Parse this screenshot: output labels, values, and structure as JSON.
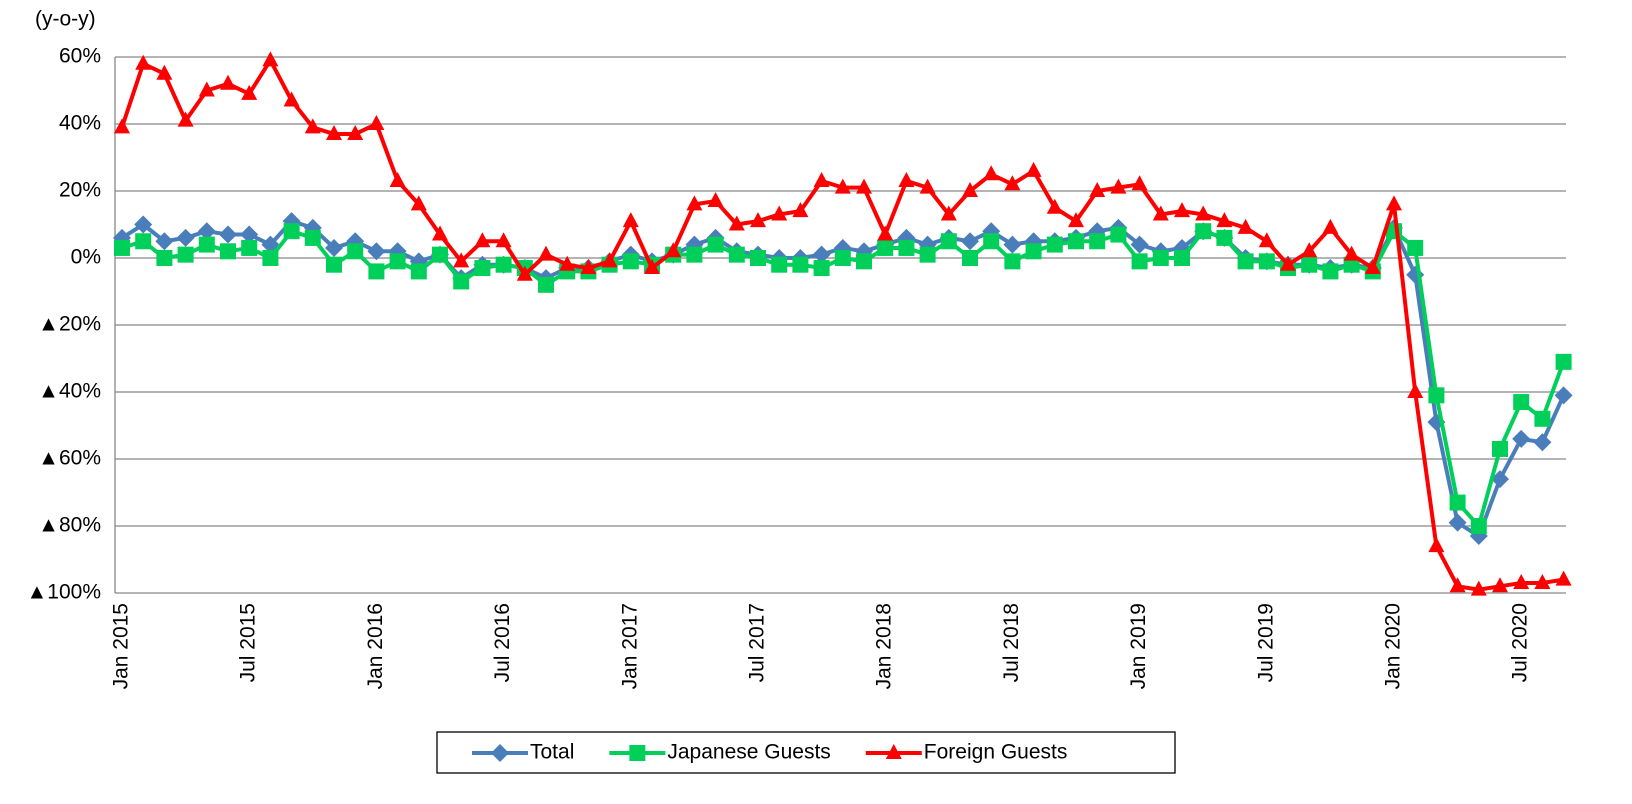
{
  "chart_data": {
    "type": "line",
    "y_axis_label": "(y-o-y)",
    "categories": [
      "Jan 2015",
      null,
      null,
      null,
      null,
      null,
      "Jul 2015",
      null,
      null,
      null,
      null,
      null,
      "Jan 2016",
      null,
      null,
      null,
      null,
      null,
      "Jul 2016",
      null,
      null,
      null,
      null,
      null,
      "Jan 2017",
      null,
      null,
      null,
      null,
      null,
      "Jul 2017",
      null,
      null,
      null,
      null,
      null,
      "Jan 2018",
      null,
      null,
      null,
      null,
      null,
      "Jul 2018",
      null,
      null,
      null,
      null,
      null,
      "Jan 2019",
      null,
      null,
      null,
      null,
      null,
      "Jul 2019",
      null,
      null,
      null,
      null,
      null,
      "Jan 2020",
      null,
      null,
      null,
      null,
      null,
      "Jul 2020",
      null,
      null
    ],
    "series": [
      {
        "name": "Total",
        "color": "#4a7ebb",
        "marker": "diamond",
        "values": [
          6,
          10,
          5,
          6,
          8,
          7,
          7,
          4,
          11,
          9,
          3,
          5,
          2,
          2,
          -1,
          1,
          -6,
          -2,
          -2,
          -3,
          -6,
          -3,
          -3,
          -1,
          1,
          -1,
          1,
          4,
          6,
          2,
          1,
          0,
          0,
          1,
          3,
          2,
          4,
          6,
          4,
          6,
          5,
          8,
          4,
          5,
          5,
          6,
          8,
          9,
          4,
          2,
          3,
          8,
          6,
          0,
          -1,
          -2,
          -2,
          -3,
          -2,
          -3,
          9,
          -5,
          -49,
          -79,
          -83,
          -66,
          -54,
          -55,
          -41
        ]
      },
      {
        "name": "Japanese Guests",
        "color": "#00d05a",
        "marker": "square",
        "values": [
          3,
          5,
          0,
          1,
          4,
          2,
          3,
          0,
          8,
          6,
          -2,
          2,
          -4,
          -1,
          -4,
          1,
          -7,
          -3,
          -2,
          -3,
          -8,
          -4,
          -4,
          -2,
          -1,
          -2,
          1,
          1,
          4,
          1,
          0,
          -2,
          -2,
          -3,
          0,
          -1,
          3,
          3,
          1,
          5,
          0,
          5,
          -1,
          2,
          4,
          5,
          5,
          7,
          -1,
          0,
          0,
          8,
          6,
          -1,
          -1,
          -3,
          -2,
          -4,
          -2,
          -4,
          8,
          3,
          -41,
          -73,
          -80,
          -57,
          -43,
          -48,
          -31
        ]
      },
      {
        "name": "Foreign Guests",
        "color": "#ff0000",
        "marker": "triangle",
        "values": [
          39,
          58,
          55,
          41,
          50,
          52,
          49,
          59,
          47,
          39,
          37,
          37,
          40,
          23,
          16,
          7,
          -1,
          5,
          5,
          -5,
          1,
          -2,
          -3,
          -1,
          11,
          -3,
          2,
          16,
          17,
          10,
          11,
          13,
          14,
          23,
          21,
          21,
          7,
          23,
          21,
          13,
          20,
          25,
          22,
          26,
          15,
          11,
          20,
          21,
          22,
          13,
          14,
          13,
          11,
          9,
          5,
          -2,
          2,
          9,
          1,
          -3,
          16,
          -40,
          -86,
          -98,
          -99,
          -98,
          -97,
          -97,
          -96
        ]
      }
    ],
    "ylim": [
      -100,
      60
    ],
    "yticks": [
      {
        "value": 60,
        "label": "60%"
      },
      {
        "value": 40,
        "label": "40%"
      },
      {
        "value": 20,
        "label": "20%"
      },
      {
        "value": 0,
        "label": "0%"
      },
      {
        "value": -20,
        "label": "▲20%"
      },
      {
        "value": -40,
        "label": "▲40%"
      },
      {
        "value": -60,
        "label": "▲60%"
      },
      {
        "value": -80,
        "label": "▲80%"
      },
      {
        "value": -100,
        "label": "▲100%"
      }
    ],
    "grid": true,
    "legend": "bottom"
  }
}
